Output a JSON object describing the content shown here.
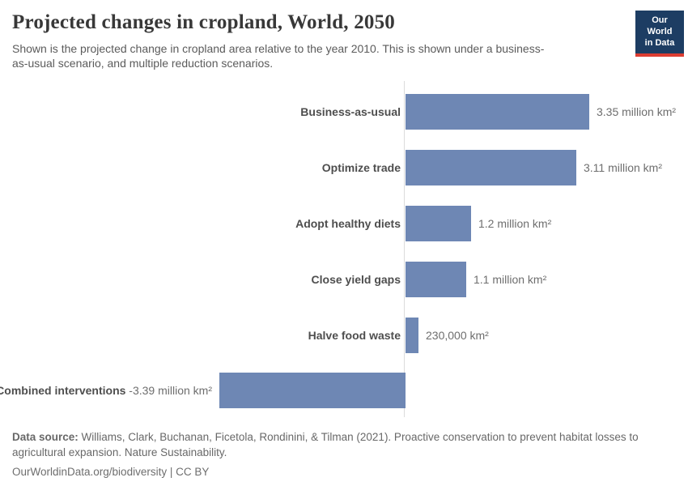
{
  "header": {
    "title": "Projected changes in cropland, World, 2050",
    "subtitle": "Shown is the projected change in cropland area relative to the year 2010. This is shown under a business-as-usual scenario, and multiple reduction scenarios."
  },
  "logo": {
    "line1": "Our World",
    "line2": "in Data",
    "bg_color": "#1d3d63",
    "accent_color": "#dc3d32"
  },
  "chart_data": {
    "type": "bar",
    "orientation": "horizontal",
    "title": "Projected changes in cropland, World, 2050",
    "unit": "million km²",
    "baseline": 0,
    "xlim": [
      -3.5,
      3.5
    ],
    "grid": false,
    "bar_color": "#6e87b4",
    "axis_color": "#dcdcdc",
    "categories": [
      "Business-as-usual",
      "Optimize trade",
      "Adopt healthy diets",
      "Close yield gaps",
      "Halve food waste",
      "Combined interventions"
    ],
    "values": [
      3.35,
      3.11,
      1.2,
      1.1,
      0.23,
      -3.39
    ],
    "value_labels": [
      "3.35 million km²",
      "3.11 million km²",
      "1.2 million km²",
      "1.1 million km²",
      "230,000 km²",
      "-3.39 million km²"
    ]
  },
  "footer": {
    "data_source_label": "Data source:",
    "data_source_text": " Williams, Clark, Buchanan, Ficetola, Rondinini, & Tilman (2021). Proactive conservation to prevent habitat losses to agricultural expansion. Nature Sustainability.",
    "link_text": "OurWorldinData.org/biodiversity | CC BY"
  }
}
